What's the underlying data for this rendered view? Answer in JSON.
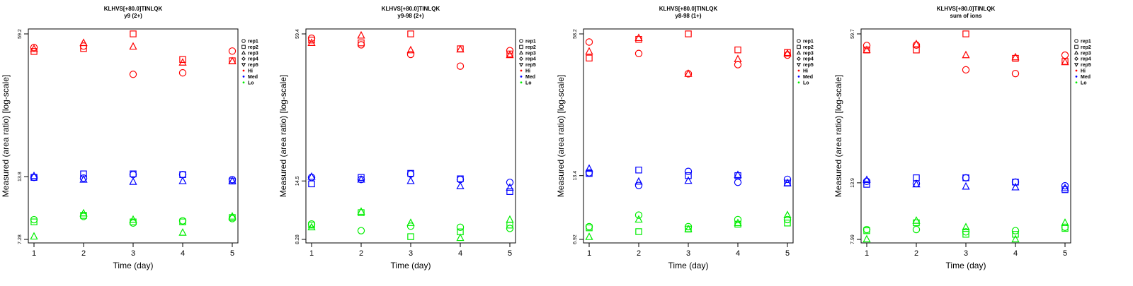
{
  "colors": {
    "Hi": "#ff0000",
    "Med": "#0000ff",
    "Lo": "#00ee00",
    "axis": "#000000"
  },
  "legend": {
    "entries": [
      {
        "label": "rep1",
        "marker": "circle",
        "color": "#000000"
      },
      {
        "label": "rep2",
        "marker": "square",
        "color": "#000000"
      },
      {
        "label": "rep3",
        "marker": "triangle-up",
        "color": "#000000"
      },
      {
        "label": "rep4",
        "marker": "diamond",
        "color": "#000000"
      },
      {
        "label": "rep5",
        "marker": "triangle-down",
        "color": "#000000"
      },
      {
        "label": "Hi",
        "marker": "dot",
        "color": "#ff0000"
      },
      {
        "label": "Med",
        "marker": "dot",
        "color": "#0000ff"
      },
      {
        "label": "Lo",
        "marker": "dot",
        "color": "#00ee00"
      }
    ]
  },
  "chart_data": [
    {
      "type": "scatter",
      "title": "KLHVS[+80.0]TINLQK",
      "subtitle": "y9 (2+)",
      "xlabel": "Time (day)",
      "ylabel": "Measured (area ratio) [log-scale]",
      "x_ticks": [
        "1",
        "2",
        "3",
        "4",
        "5"
      ],
      "y_ticks": [
        "7.28",
        "13.8",
        "59.2"
      ],
      "y_scale": "log",
      "xlim": [
        0.9,
        5.1
      ],
      "ylim": [
        7.28,
        59.2
      ],
      "legend_position": "right",
      "series": [
        {
          "name": "rep1",
          "group": "Hi",
          "marker": "circle",
          "points": [
            [
              1,
              51.5
            ],
            [
              2,
              52.3
            ],
            [
              3,
              39.2
            ],
            [
              4,
              39.8
            ],
            [
              5,
              49.7
            ]
          ]
        },
        {
          "name": "rep2",
          "group": "Hi",
          "marker": "square",
          "points": [
            [
              1,
              49.5
            ],
            [
              2,
              51.0
            ],
            [
              3,
              59.2
            ],
            [
              4,
              45.6
            ],
            [
              5,
              45.0
            ]
          ]
        },
        {
          "name": "rep3",
          "group": "Hi",
          "marker": "triangle-up",
          "points": [
            [
              1,
              50.8
            ],
            [
              2,
              54.0
            ],
            [
              3,
              52.0
            ],
            [
              4,
              44.2
            ],
            [
              5,
              44.8
            ]
          ]
        },
        {
          "name": "rep1",
          "group": "Med",
          "marker": "circle",
          "points": [
            [
              1,
              13.7
            ],
            [
              2,
              13.6
            ],
            [
              3,
              14.1
            ],
            [
              4,
              14.1
            ],
            [
              5,
              13.4
            ]
          ]
        },
        {
          "name": "rep2",
          "group": "Med",
          "marker": "square",
          "points": [
            [
              1,
              13.7
            ],
            [
              2,
              14.2
            ],
            [
              3,
              14.2
            ],
            [
              4,
              14.1
            ],
            [
              5,
              13.2
            ]
          ]
        },
        {
          "name": "rep3",
          "group": "Med",
          "marker": "triangle-up",
          "points": [
            [
              1,
              13.9
            ],
            [
              2,
              13.4
            ],
            [
              3,
              13.1
            ],
            [
              4,
              13.2
            ],
            [
              5,
              13.2
            ]
          ]
        },
        {
          "name": "rep1",
          "group": "Lo",
          "marker": "circle",
          "points": [
            [
              1,
              8.9
            ],
            [
              2,
              9.2
            ],
            [
              3,
              8.6
            ],
            [
              4,
              8.8
            ],
            [
              5,
              9.0
            ]
          ]
        },
        {
          "name": "rep2",
          "group": "Lo",
          "marker": "square",
          "points": [
            [
              1,
              8.7
            ],
            [
              2,
              9.3
            ],
            [
              3,
              8.7
            ],
            [
              4,
              8.7
            ],
            [
              5,
              9.1
            ]
          ]
        },
        {
          "name": "rep3",
          "group": "Lo",
          "marker": "triangle-up",
          "points": [
            [
              1,
              7.5
            ],
            [
              2,
              9.5
            ],
            [
              3,
              8.9
            ],
            [
              4,
              7.8
            ],
            [
              5,
              9.2
            ]
          ]
        }
      ]
    },
    {
      "type": "scatter",
      "title": "KLHVS[+80.0]TINLQK",
      "subtitle": "y9-98 (2+)",
      "xlabel": "Time (day)",
      "ylabel": "Measured (area ratio) [log-scale]",
      "x_ticks": [
        "1",
        "2",
        "3",
        "4",
        "5"
      ],
      "y_ticks": [
        "8.28",
        "14.5",
        "59.4"
      ],
      "y_scale": "log",
      "xlim": [
        0.9,
        5.1
      ],
      "ylim": [
        8.28,
        59.4
      ],
      "legend_position": "right",
      "series": [
        {
          "name": "rep1",
          "group": "Hi",
          "marker": "circle",
          "points": [
            [
              1,
              57.0
            ],
            [
              2,
              53.5
            ],
            [
              3,
              48.8
            ],
            [
              4,
              43.6
            ],
            [
              5,
              50.6
            ]
          ]
        },
        {
          "name": "rep2",
          "group": "Hi",
          "marker": "square",
          "points": [
            [
              1,
              56.0
            ],
            [
              2,
              54.5
            ],
            [
              3,
              59.4
            ],
            [
              4,
              51.5
            ],
            [
              5,
              49.0
            ]
          ]
        },
        {
          "name": "rep3",
          "group": "Hi",
          "marker": "triangle-up",
          "points": [
            [
              1,
              54.5
            ],
            [
              2,
              58.5
            ],
            [
              3,
              50.8
            ],
            [
              4,
              51.2
            ],
            [
              5,
              48.5
            ]
          ]
        },
        {
          "name": "rep1",
          "group": "Med",
          "marker": "circle",
          "points": [
            [
              1,
              15.0
            ],
            [
              2,
              14.7
            ],
            [
              3,
              15.5
            ],
            [
              4,
              14.7
            ],
            [
              5,
              14.3
            ]
          ]
        },
        {
          "name": "rep2",
          "group": "Med",
          "marker": "square",
          "points": [
            [
              1,
              14.1
            ],
            [
              2,
              15.0
            ],
            [
              3,
              15.6
            ],
            [
              4,
              14.8
            ],
            [
              5,
              13.1
            ]
          ]
        },
        {
          "name": "rep3",
          "group": "Med",
          "marker": "triangle-up",
          "points": [
            [
              1,
              15.1
            ],
            [
              2,
              14.7
            ],
            [
              3,
              14.5
            ],
            [
              4,
              13.8
            ],
            [
              5,
              13.6
            ]
          ]
        },
        {
          "name": "rep1",
          "group": "Lo",
          "marker": "circle",
          "points": [
            [
              1,
              9.6
            ],
            [
              2,
              9.0
            ],
            [
              3,
              9.4
            ],
            [
              4,
              9.3
            ],
            [
              5,
              9.2
            ]
          ]
        },
        {
          "name": "rep2",
          "group": "Lo",
          "marker": "square",
          "points": [
            [
              1,
              9.5
            ],
            [
              2,
              10.7
            ],
            [
              3,
              8.5
            ],
            [
              4,
              8.9
            ],
            [
              5,
              9.5
            ]
          ]
        },
        {
          "name": "rep3",
          "group": "Lo",
          "marker": "triangle-up",
          "points": [
            [
              1,
              9.3
            ],
            [
              2,
              10.8
            ],
            [
              3,
              9.7
            ],
            [
              4,
              8.4
            ],
            [
              5,
              10.0
            ]
          ]
        }
      ]
    },
    {
      "type": "scatter",
      "title": "KLHVS[+80.0]TINLQK",
      "subtitle": "y8-98 (1+)",
      "xlabel": "Time (day)",
      "ylabel": "Measured (area ratio) [log-scale]",
      "x_ticks": [
        "1",
        "2",
        "3",
        "4",
        "5"
      ],
      "y_ticks": [
        "6.92",
        "13.4",
        "58.2"
      ],
      "y_scale": "log",
      "xlim": [
        0.9,
        5.1
      ],
      "ylim": [
        6.92,
        58.2
      ],
      "legend_position": "right",
      "series": [
        {
          "name": "rep1",
          "group": "Hi",
          "marker": "circle",
          "points": [
            [
              1,
              53.5
            ],
            [
              2,
              47.5
            ],
            [
              3,
              38.5
            ],
            [
              4,
              42.3
            ],
            [
              5,
              46.7
            ]
          ]
        },
        {
          "name": "rep2",
          "group": "Hi",
          "marker": "square",
          "points": [
            [
              1,
              45.3
            ],
            [
              2,
              55.0
            ],
            [
              3,
              58.2
            ],
            [
              4,
              49.3
            ],
            [
              5,
              48.0
            ]
          ]
        },
        {
          "name": "rep3",
          "group": "Hi",
          "marker": "triangle-up",
          "points": [
            [
              1,
              48.5
            ],
            [
              2,
              55.8
            ],
            [
              3,
              38.5
            ],
            [
              4,
              44.8
            ],
            [
              5,
              47.5
            ]
          ]
        },
        {
          "name": "rep1",
          "group": "Med",
          "marker": "circle",
          "points": [
            [
              1,
              13.8
            ],
            [
              2,
              12.1
            ],
            [
              3,
              14.0
            ],
            [
              4,
              12.5
            ],
            [
              5,
              12.9
            ]
          ]
        },
        {
          "name": "rep2",
          "group": "Med",
          "marker": "square",
          "points": [
            [
              1,
              13.7
            ],
            [
              2,
              14.2
            ],
            [
              3,
              13.4
            ],
            [
              4,
              13.4
            ],
            [
              5,
              12.4
            ]
          ]
        },
        {
          "name": "rep3",
          "group": "Med",
          "marker": "triangle-up",
          "points": [
            [
              1,
              14.4
            ],
            [
              2,
              12.6
            ],
            [
              3,
              12.7
            ],
            [
              4,
              13.5
            ],
            [
              5,
              12.4
            ]
          ]
        },
        {
          "name": "rep1",
          "group": "Lo",
          "marker": "circle",
          "points": [
            [
              1,
              7.9
            ],
            [
              2,
              8.9
            ],
            [
              3,
              7.9
            ],
            [
              4,
              8.5
            ],
            [
              5,
              8.5
            ]
          ]
        },
        {
          "name": "rep2",
          "group": "Lo",
          "marker": "square",
          "points": [
            [
              1,
              7.8
            ],
            [
              2,
              7.5
            ],
            [
              3,
              7.7
            ],
            [
              4,
              8.1
            ],
            [
              5,
              8.2
            ]
          ]
        },
        {
          "name": "rep3",
          "group": "Lo",
          "marker": "triangle-up",
          "points": [
            [
              1,
              7.1
            ],
            [
              2,
              8.5
            ],
            [
              3,
              7.7
            ],
            [
              4,
              8.2
            ],
            [
              5,
              8.9
            ]
          ]
        }
      ]
    },
    {
      "type": "scatter",
      "title": "KLHVS[+80.0]TINLQK",
      "subtitle": "sum of ions",
      "xlabel": "Time (day)",
      "ylabel": "Measured (area ratio) [log-scale]",
      "x_ticks": [
        "1",
        "2",
        "3",
        "4",
        "5"
      ],
      "y_ticks": [
        "7.99",
        "13.9",
        "59.7"
      ],
      "y_scale": "log",
      "xlim": [
        0.9,
        5.1
      ],
      "ylim": [
        7.99,
        59.7
      ],
      "legend_position": "right",
      "series": [
        {
          "name": "rep1",
          "group": "Hi",
          "marker": "circle",
          "points": [
            [
              1,
              53.3
            ],
            [
              2,
              53.5
            ],
            [
              3,
              42.0
            ],
            [
              4,
              40.5
            ],
            [
              5,
              48.5
            ]
          ]
        },
        {
          "name": "rep2",
          "group": "Hi",
          "marker": "square",
          "points": [
            [
              1,
              51.0
            ],
            [
              2,
              51.0
            ],
            [
              3,
              59.7
            ],
            [
              4,
              47.0
            ],
            [
              5,
              45.6
            ]
          ]
        },
        {
          "name": "rep3",
          "group": "Hi",
          "marker": "triangle-up",
          "points": [
            [
              1,
              51.0
            ],
            [
              2,
              54.0
            ],
            [
              3,
              48.5
            ],
            [
              4,
              47.5
            ],
            [
              5,
              45.3
            ]
          ]
        },
        {
          "name": "rep1",
          "group": "Med",
          "marker": "circle",
          "points": [
            [
              1,
              14.1
            ],
            [
              2,
              13.8
            ],
            [
              3,
              14.6
            ],
            [
              4,
              14.0
            ],
            [
              5,
              13.5
            ]
          ]
        },
        {
          "name": "rep2",
          "group": "Med",
          "marker": "square",
          "points": [
            [
              1,
              13.7
            ],
            [
              2,
              14.6
            ],
            [
              3,
              14.6
            ],
            [
              4,
              14.0
            ],
            [
              5,
              13.0
            ]
          ]
        },
        {
          "name": "rep3",
          "group": "Med",
          "marker": "triangle-up",
          "points": [
            [
              1,
              14.3
            ],
            [
              2,
              13.7
            ],
            [
              3,
              13.4
            ],
            [
              4,
              13.3
            ],
            [
              5,
              13.2
            ]
          ]
        },
        {
          "name": "rep1",
          "group": "Lo",
          "marker": "circle",
          "points": [
            [
              1,
              8.8
            ],
            [
              2,
              8.8
            ],
            [
              3,
              8.6
            ],
            [
              4,
              8.7
            ],
            [
              5,
              9.0
            ]
          ]
        },
        {
          "name": "rep2",
          "group": "Lo",
          "marker": "square",
          "points": [
            [
              1,
              8.7
            ],
            [
              2,
              9.4
            ],
            [
              3,
              8.4
            ],
            [
              4,
              8.4
            ],
            [
              5,
              8.9
            ]
          ]
        },
        {
          "name": "rep3",
          "group": "Lo",
          "marker": "triangle-up",
          "points": [
            [
              1,
              8.0
            ],
            [
              2,
              9.6
            ],
            [
              3,
              9.0
            ],
            [
              4,
              8.0
            ],
            [
              5,
              9.4
            ]
          ]
        }
      ]
    }
  ]
}
